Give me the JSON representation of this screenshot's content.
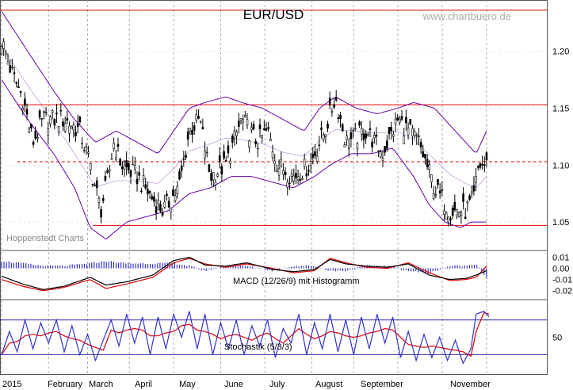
{
  "header": {
    "title": "EUR/USD",
    "watermark": "www.chartbuero.de",
    "source": "Hoppenstedt Charts"
  },
  "colors": {
    "price": "#000000",
    "bollinger": "#6600aa",
    "support_resistance": "#e00000",
    "macd_line": "#000000",
    "signal_line": "#e00000",
    "histogram": "#3333cc",
    "stoch_k": "#3333cc",
    "stoch_d": "#e00000",
    "grid": "#999999",
    "stoch_bounds": "#2222aa"
  },
  "x_axis": {
    "labels": [
      "2015",
      "February",
      "March",
      "April",
      "May",
      "June",
      "July",
      "August",
      "September",
      "November"
    ]
  },
  "chart_data": [
    {
      "type": "line",
      "title": "EUR/USD",
      "indicator": "Bollinger Bands",
      "y_ticks": [
        1.05,
        1.1,
        1.15,
        1.2
      ],
      "y_tick_labels": [
        "1.05",
        "1.10",
        "1.15",
        "1.20"
      ],
      "ylim": [
        1.025,
        1.245
      ],
      "levels": [
        {
          "style": "solid",
          "value": 1.236,
          "xfrac": [
            0,
            1
          ]
        },
        {
          "style": "solid",
          "value": 1.153,
          "xfrac": [
            0.03,
            1
          ]
        },
        {
          "style": "dashed",
          "value": 1.103,
          "xfrac": [
            0.03,
            1
          ]
        },
        {
          "style": "solid",
          "value": 1.047,
          "xfrac": [
            0.175,
            1
          ]
        }
      ],
      "price_waypoints": [
        [
          0,
          1.21
        ],
        [
          0.02,
          1.18
        ],
        [
          0.04,
          1.16
        ],
        [
          0.06,
          1.12
        ],
        [
          0.08,
          1.14
        ],
        [
          0.12,
          1.14
        ],
        [
          0.15,
          1.13
        ],
        [
          0.17,
          1.1
        ],
        [
          0.19,
          1.06
        ],
        [
          0.205,
          1.09
        ],
        [
          0.215,
          1.12
        ],
        [
          0.23,
          1.1
        ],
        [
          0.26,
          1.09
        ],
        [
          0.29,
          1.07
        ],
        [
          0.31,
          1.06
        ],
        [
          0.34,
          1.08
        ],
        [
          0.36,
          1.13
        ],
        [
          0.38,
          1.14
        ],
        [
          0.4,
          1.09
        ],
        [
          0.43,
          1.1
        ],
        [
          0.46,
          1.14
        ],
        [
          0.49,
          1.12
        ],
        [
          0.51,
          1.13
        ],
        [
          0.53,
          1.1
        ],
        [
          0.56,
          1.09
        ],
        [
          0.59,
          1.1
        ],
        [
          0.62,
          1.13
        ],
        [
          0.64,
          1.16
        ],
        [
          0.66,
          1.12
        ],
        [
          0.7,
          1.13
        ],
        [
          0.73,
          1.11
        ],
        [
          0.76,
          1.14
        ],
        [
          0.8,
          1.12
        ],
        [
          0.83,
          1.08
        ],
        [
          0.86,
          1.06
        ],
        [
          0.89,
          1.06
        ],
        [
          0.905,
          1.07
        ],
        [
          0.915,
          1.1
        ],
        [
          0.93,
          1.1
        ]
      ],
      "bollinger_upper": [
        [
          0,
          1.235
        ],
        [
          0.05,
          1.2
        ],
        [
          0.1,
          1.165
        ],
        [
          0.14,
          1.14
        ],
        [
          0.18,
          1.12
        ],
        [
          0.22,
          1.13
        ],
        [
          0.26,
          1.12
        ],
        [
          0.3,
          1.11
        ],
        [
          0.33,
          1.13
        ],
        [
          0.36,
          1.15
        ],
        [
          0.39,
          1.155
        ],
        [
          0.43,
          1.16
        ],
        [
          0.46,
          1.155
        ],
        [
          0.5,
          1.15
        ],
        [
          0.54,
          1.14
        ],
        [
          0.58,
          1.13
        ],
        [
          0.61,
          1.15
        ],
        [
          0.64,
          1.16
        ],
        [
          0.68,
          1.15
        ],
        [
          0.72,
          1.145
        ],
        [
          0.76,
          1.15
        ],
        [
          0.79,
          1.155
        ],
        [
          0.83,
          1.15
        ],
        [
          0.86,
          1.135
        ],
        [
          0.89,
          1.12
        ],
        [
          0.91,
          1.11
        ],
        [
          0.93,
          1.13
        ]
      ],
      "bollinger_lower": [
        [
          0,
          1.175
        ],
        [
          0.05,
          1.14
        ],
        [
          0.1,
          1.11
        ],
        [
          0.14,
          1.08
        ],
        [
          0.17,
          1.045
        ],
        [
          0.2,
          1.035
        ],
        [
          0.24,
          1.05
        ],
        [
          0.28,
          1.055
        ],
        [
          0.32,
          1.06
        ],
        [
          0.36,
          1.075
        ],
        [
          0.4,
          1.08
        ],
        [
          0.44,
          1.09
        ],
        [
          0.48,
          1.09
        ],
        [
          0.52,
          1.085
        ],
        [
          0.56,
          1.08
        ],
        [
          0.6,
          1.09
        ],
        [
          0.63,
          1.1
        ],
        [
          0.67,
          1.11
        ],
        [
          0.71,
          1.11
        ],
        [
          0.75,
          1.115
        ],
        [
          0.79,
          1.09
        ],
        [
          0.82,
          1.065
        ],
        [
          0.85,
          1.05
        ],
        [
          0.88,
          1.045
        ],
        [
          0.9,
          1.05
        ],
        [
          0.93,
          1.05
        ]
      ]
    },
    {
      "type": "line",
      "title": "MACD (12/26/9) mit Histogramm",
      "y_ticks": [
        0.01,
        0.0,
        -0.01,
        -0.02
      ],
      "y_tick_labels": [
        "0.01",
        "0.00",
        "-0.01",
        "-0.02"
      ],
      "ylim": [
        -0.028,
        0.016
      ],
      "macd_waypoints": [
        [
          0,
          -0.007
        ],
        [
          0.04,
          -0.014
        ],
        [
          0.08,
          -0.019
        ],
        [
          0.12,
          -0.016
        ],
        [
          0.17,
          -0.008
        ],
        [
          0.2,
          -0.015
        ],
        [
          0.24,
          -0.012
        ],
        [
          0.29,
          -0.006
        ],
        [
          0.33,
          0.007
        ],
        [
          0.36,
          0.01
        ],
        [
          0.39,
          0.003
        ],
        [
          0.43,
          0.002
        ],
        [
          0.47,
          0.005
        ],
        [
          0.52,
          -0.001
        ],
        [
          0.56,
          -0.003
        ],
        [
          0.6,
          -0.001
        ],
        [
          0.63,
          0.008
        ],
        [
          0.66,
          0.004
        ],
        [
          0.7,
          0.002
        ],
        [
          0.74,
          0.001
        ],
        [
          0.78,
          0.004
        ],
        [
          0.82,
          -0.006
        ],
        [
          0.86,
          -0.01
        ],
        [
          0.89,
          -0.009
        ],
        [
          0.91,
          -0.006
        ],
        [
          0.93,
          -0.002
        ]
      ],
      "signal_waypoints": [
        [
          0,
          -0.01
        ],
        [
          0.04,
          -0.016
        ],
        [
          0.08,
          -0.02
        ],
        [
          0.12,
          -0.017
        ],
        [
          0.17,
          -0.01
        ],
        [
          0.2,
          -0.018
        ],
        [
          0.24,
          -0.014
        ],
        [
          0.29,
          -0.008
        ],
        [
          0.33,
          0.005
        ],
        [
          0.36,
          0.009
        ],
        [
          0.39,
          0.004
        ],
        [
          0.43,
          0.001
        ],
        [
          0.47,
          0.004
        ],
        [
          0.52,
          0.0
        ],
        [
          0.56,
          -0.004
        ],
        [
          0.6,
          -0.002
        ],
        [
          0.63,
          0.009
        ],
        [
          0.66,
          0.005
        ],
        [
          0.7,
          0.001
        ],
        [
          0.74,
          0.0
        ],
        [
          0.78,
          0.005
        ],
        [
          0.82,
          -0.004
        ],
        [
          0.86,
          -0.011
        ],
        [
          0.89,
          -0.01
        ],
        [
          0.91,
          -0.008
        ],
        [
          0.93,
          0.002
        ]
      ]
    },
    {
      "type": "line",
      "title": "Stochastik (5/3/3)",
      "y_ticks": [
        50
      ],
      "y_tick_labels": [
        "50"
      ],
      "ylim": [
        -15,
        115
      ],
      "bounds": [
        80,
        20
      ],
      "stoch_waypoints": [
        [
          0,
          20
        ],
        [
          0.015,
          60
        ],
        [
          0.03,
          25
        ],
        [
          0.045,
          80
        ],
        [
          0.06,
          30
        ],
        [
          0.075,
          75
        ],
        [
          0.09,
          40
        ],
        [
          0.105,
          80
        ],
        [
          0.12,
          25
        ],
        [
          0.135,
          70
        ],
        [
          0.15,
          20
        ],
        [
          0.165,
          55
        ],
        [
          0.18,
          10
        ],
        [
          0.195,
          45
        ],
        [
          0.21,
          80
        ],
        [
          0.225,
          35
        ],
        [
          0.24,
          90
        ],
        [
          0.255,
          40
        ],
        [
          0.27,
          85
        ],
        [
          0.285,
          20
        ],
        [
          0.3,
          85
        ],
        [
          0.315,
          30
        ],
        [
          0.33,
          90
        ],
        [
          0.345,
          50
        ],
        [
          0.36,
          95
        ],
        [
          0.375,
          30
        ],
        [
          0.39,
          90
        ],
        [
          0.405,
          20
        ],
        [
          0.42,
          75
        ],
        [
          0.435,
          30
        ],
        [
          0.45,
          80
        ],
        [
          0.465,
          20
        ],
        [
          0.48,
          70
        ],
        [
          0.495,
          35
        ],
        [
          0.51,
          80
        ],
        [
          0.525,
          15
        ],
        [
          0.54,
          65
        ],
        [
          0.555,
          40
        ],
        [
          0.57,
          90
        ],
        [
          0.585,
          20
        ],
        [
          0.6,
          75
        ],
        [
          0.615,
          30
        ],
        [
          0.63,
          90
        ],
        [
          0.645,
          25
        ],
        [
          0.66,
          80
        ],
        [
          0.675,
          20
        ],
        [
          0.69,
          85
        ],
        [
          0.705,
          30
        ],
        [
          0.72,
          90
        ],
        [
          0.735,
          40
        ],
        [
          0.75,
          85
        ],
        [
          0.765,
          15
        ],
        [
          0.78,
          60
        ],
        [
          0.795,
          10
        ],
        [
          0.81,
          55
        ],
        [
          0.825,
          15
        ],
        [
          0.84,
          50
        ],
        [
          0.855,
          10
        ],
        [
          0.87,
          45
        ],
        [
          0.885,
          5
        ],
        [
          0.9,
          30
        ],
        [
          0.91,
          90
        ],
        [
          0.925,
          95
        ],
        [
          0.935,
          85
        ]
      ]
    }
  ]
}
